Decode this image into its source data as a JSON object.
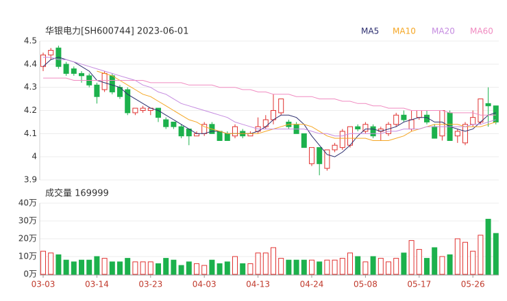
{
  "chart_data": [
    {
      "type": "candlestick",
      "title": "华银电力[SH600744] 2023-06-01",
      "up_color": "#e0312f",
      "down_color": "#1cb14c",
      "ylim": [
        3.9,
        4.5
      ],
      "yticks": [
        3.9,
        4,
        4.1,
        4.2,
        4.3,
        4.4,
        4.5
      ],
      "grid": true,
      "open": [
        4.39,
        4.44,
        4.47,
        4.4,
        4.38,
        4.36,
        4.35,
        4.31,
        4.29,
        4.35,
        4.3,
        4.29,
        4.19,
        4.2,
        4.2,
        4.21,
        4.16,
        4.15,
        4.13,
        4.12,
        4.09,
        4.1,
        4.14,
        4.11,
        4.1,
        4.09,
        4.11,
        4.09,
        4.11,
        4.13,
        4.16,
        4.19,
        4.15,
        4.14,
        4.1,
        3.97,
        4.04,
        3.95,
        4.03,
        4.04,
        4.05,
        4.13,
        4.11,
        4.13,
        4.11,
        4.1,
        4.14,
        4.18,
        4.12,
        4.17,
        4.18,
        4.13,
        4.09,
        4.19,
        4.09,
        4.06,
        4.14,
        4.15,
        4.23,
        4.22
      ],
      "close": [
        4.44,
        4.46,
        4.39,
        4.36,
        4.36,
        4.35,
        4.31,
        4.26,
        4.36,
        4.28,
        4.26,
        4.19,
        4.21,
        4.21,
        4.21,
        4.17,
        4.13,
        4.13,
        4.09,
        4.09,
        4.1,
        4.14,
        4.1,
        4.07,
        4.07,
        4.13,
        4.09,
        4.1,
        4.13,
        4.16,
        4.2,
        4.25,
        4.13,
        4.1,
        4.04,
        4.04,
        3.97,
        4.03,
        4.05,
        4.11,
        4.13,
        4.12,
        4.14,
        4.09,
        4.12,
        4.14,
        4.18,
        4.16,
        4.16,
        4.2,
        4.15,
        4.08,
        4.2,
        4.07,
        4.11,
        4.14,
        4.17,
        4.25,
        4.22,
        4.15
      ],
      "high": [
        4.45,
        4.47,
        4.48,
        4.41,
        4.39,
        4.37,
        4.36,
        4.32,
        4.37,
        4.36,
        4.31,
        4.3,
        4.21,
        4.22,
        4.21,
        4.21,
        4.17,
        4.15,
        4.14,
        4.12,
        4.11,
        4.15,
        4.15,
        4.11,
        4.11,
        4.14,
        4.12,
        4.11,
        4.17,
        4.18,
        4.27,
        4.25,
        4.16,
        4.15,
        4.1,
        4.04,
        4.04,
        4.03,
        4.06,
        4.12,
        4.13,
        4.14,
        4.15,
        4.14,
        4.13,
        4.15,
        4.19,
        4.2,
        4.2,
        4.2,
        4.2,
        4.14,
        4.2,
        4.2,
        4.12,
        4.15,
        4.2,
        4.25,
        4.3,
        4.22
      ],
      "low": [
        4.37,
        4.42,
        4.38,
        4.35,
        4.35,
        4.32,
        4.3,
        4.23,
        4.28,
        4.27,
        4.25,
        4.18,
        4.18,
        4.19,
        4.18,
        4.15,
        4.12,
        4.12,
        4.08,
        4.05,
        4.09,
        4.09,
        4.1,
        4.07,
        4.07,
        4.08,
        4.08,
        4.09,
        4.1,
        4.12,
        4.14,
        4.18,
        4.12,
        4.1,
        4.04,
        3.96,
        3.92,
        3.94,
        4.02,
        4.03,
        4.04,
        4.11,
        4.1,
        4.08,
        4.07,
        4.09,
        4.13,
        4.15,
        4.11,
        4.16,
        4.14,
        4.08,
        4.07,
        4.07,
        4.06,
        4.05,
        4.13,
        4.14,
        4.13,
        4.14
      ],
      "series": [
        {
          "name": "MA5",
          "color": "#2b2d6e",
          "values": [
            4.39,
            4.42,
            4.43,
            4.42,
            4.41,
            4.39,
            4.37,
            4.33,
            4.32,
            4.31,
            4.3,
            4.27,
            4.25,
            4.23,
            4.21,
            4.2,
            4.18,
            4.16,
            4.14,
            4.12,
            4.1,
            4.1,
            4.11,
            4.11,
            4.1,
            4.1,
            4.1,
            4.1,
            4.11,
            4.13,
            4.16,
            4.18,
            4.18,
            4.17,
            4.14,
            4.09,
            4.05,
            4.01,
            4.0,
            4.02,
            4.05,
            4.09,
            4.12,
            4.12,
            4.11,
            4.12,
            4.13,
            4.15,
            4.16,
            4.17,
            4.17,
            4.15,
            4.15,
            4.13,
            4.12,
            4.11,
            4.12,
            4.15,
            4.18,
            4.19
          ]
        },
        {
          "name": "MA10",
          "color": "#f5a623",
          "values": [
            null,
            null,
            null,
            null,
            null,
            null,
            null,
            4.37,
            4.36,
            4.35,
            4.33,
            4.31,
            4.29,
            4.27,
            4.26,
            4.24,
            4.22,
            4.2,
            4.18,
            4.16,
            4.15,
            4.13,
            4.12,
            4.11,
            4.1,
            4.1,
            4.1,
            4.1,
            4.1,
            4.11,
            4.12,
            4.13,
            4.14,
            4.14,
            4.14,
            4.13,
            4.11,
            4.09,
            4.08,
            4.08,
            4.08,
            4.08,
            4.08,
            4.07,
            4.07,
            4.07,
            4.08,
            4.09,
            4.11,
            4.12,
            4.13,
            4.14,
            4.14,
            4.14,
            4.14,
            4.13,
            4.13,
            4.13,
            4.14,
            4.15
          ]
        },
        {
          "name": "MA20",
          "color": "#c58be0",
          "values": [
            4.43,
            4.43,
            4.42,
            4.42,
            4.41,
            4.4,
            4.39,
            4.38,
            4.37,
            4.36,
            4.35,
            4.34,
            4.33,
            4.31,
            4.3,
            4.28,
            4.27,
            4.25,
            4.23,
            4.22,
            4.21,
            4.2,
            4.19,
            4.18,
            4.17,
            4.15,
            4.14,
            4.13,
            4.12,
            4.12,
            4.12,
            4.12,
            4.12,
            4.12,
            4.12,
            4.11,
            4.1,
            4.1,
            4.09,
            4.09,
            4.1,
            4.1,
            4.1,
            4.1,
            4.1,
            4.11,
            4.11,
            4.12,
            4.12,
            4.12,
            4.13,
            4.13,
            4.13,
            4.13,
            4.13,
            4.13,
            4.14,
            4.14,
            4.15,
            4.16
          ]
        },
        {
          "name": "MA60",
          "color": "#f08ac0",
          "values": [
            4.34,
            4.34,
            4.34,
            4.34,
            4.33,
            4.33,
            4.33,
            4.33,
            4.33,
            4.33,
            4.33,
            4.33,
            4.33,
            4.33,
            4.32,
            4.32,
            4.32,
            4.32,
            4.32,
            4.31,
            4.31,
            4.31,
            4.31,
            4.3,
            4.3,
            4.3,
            4.29,
            4.29,
            4.28,
            4.28,
            4.27,
            4.27,
            4.27,
            4.26,
            4.26,
            4.26,
            4.25,
            4.25,
            4.25,
            4.24,
            4.24,
            4.23,
            4.23,
            4.22,
            4.22,
            4.21,
            4.21,
            4.21,
            4.2,
            4.2,
            4.2,
            4.2,
            4.2,
            4.19,
            4.19,
            4.19,
            4.19,
            4.18,
            4.18,
            4.18
          ]
        }
      ]
    },
    {
      "type": "bar",
      "title": "成交量 169999",
      "categories": [
        "03-03",
        null,
        null,
        null,
        null,
        null,
        null,
        "03-14",
        null,
        null,
        null,
        null,
        null,
        null,
        "03-23",
        null,
        null,
        null,
        null,
        null,
        null,
        "04-03",
        null,
        null,
        null,
        null,
        null,
        null,
        "04-13",
        null,
        null,
        null,
        null,
        null,
        null,
        "04-24",
        null,
        null,
        null,
        null,
        null,
        null,
        "05-08",
        null,
        null,
        null,
        null,
        null,
        null,
        "05-17",
        null,
        null,
        null,
        null,
        null,
        null,
        "05-26",
        null,
        null,
        null
      ],
      "values": [
        13,
        12,
        11,
        8,
        7,
        8,
        8,
        10,
        9,
        7,
        7,
        9,
        7,
        7,
        7,
        6,
        9,
        8,
        5,
        7,
        6,
        5,
        8,
        6,
        7,
        10,
        6,
        6,
        12,
        12,
        15,
        9,
        8,
        8,
        8,
        8,
        7,
        8,
        8,
        9,
        12,
        10,
        7,
        10,
        9,
        7,
        9,
        12,
        19,
        14,
        9,
        15,
        10,
        11,
        20,
        18,
        13,
        22,
        31,
        23
      ],
      "ylim": [
        0,
        40
      ],
      "yticks": [
        {
          "value": 0,
          "label": "0万"
        },
        {
          "value": 10,
          "label": "10万"
        },
        {
          "value": 20,
          "label": "20万"
        },
        {
          "value": 30,
          "label": "30万"
        },
        {
          "value": 40,
          "label": "40万"
        }
      ],
      "grid": true
    }
  ]
}
